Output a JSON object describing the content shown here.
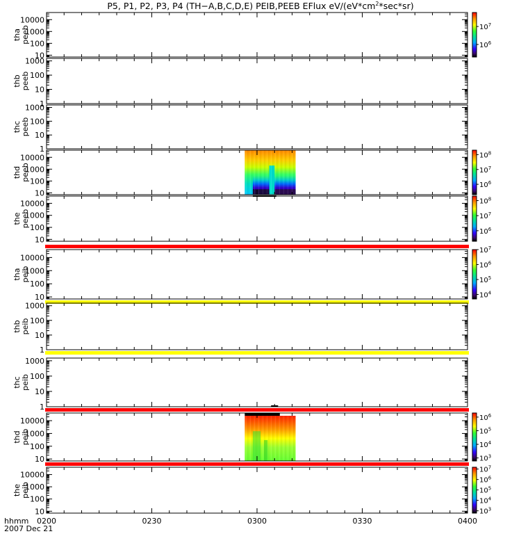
{
  "title": {
    "main": "P5, P1, P2, P3, P4 (TH−A,B,C,D,E) PEIB,PEEB EFlux eV/(eV*cm",
    "sup": "2",
    "tail": "*sec*sr)"
  },
  "time_axis": {
    "label": "hhmm",
    "date": "2007 Dec 21",
    "ticks": [
      "0200",
      "0230",
      "0300",
      "0330",
      "0400"
    ],
    "range_minutes": [
      0,
      120
    ]
  },
  "colors": {
    "red_bar": "#ff0000",
    "yellow_bar": "#ffff00",
    "black_bar": "#000000"
  },
  "chart_data": [
    {
      "type": "heatmap",
      "label_line1": "tha",
      "label_line2": "peeb",
      "yscale": "log",
      "ylim": [
        7,
        40000
      ],
      "yticks": [
        "10",
        "100",
        "1000",
        "10000"
      ],
      "data_blocks": [],
      "colorbar": {
        "scale": "log",
        "range": [
          200000,
          60000000
        ],
        "ticks": [
          {
            "base": "10",
            "exp": "6",
            "value": 1000000
          },
          {
            "base": "10",
            "exp": "7",
            "value": 10000000
          }
        ]
      }
    },
    {
      "type": "heatmap",
      "label_line1": "thb",
      "label_line2": "peeb",
      "yscale": "log",
      "ylim": [
        1,
        1500
      ],
      "yticks": [
        "1",
        "10",
        "100",
        "1000"
      ],
      "data_blocks": []
    },
    {
      "type": "heatmap",
      "label_line1": "thc",
      "label_line2": "peeb",
      "yscale": "log",
      "ylim": [
        1,
        1500
      ],
      "yticks": [
        "1",
        "10",
        "100",
        "1000"
      ],
      "data_blocks": []
    },
    {
      "type": "heatmap",
      "label_line1": "thd",
      "label_line2": "peeb",
      "yscale": "log",
      "ylim": [
        7,
        40000
      ],
      "yticks": [
        "10",
        "100",
        "1000",
        "10000"
      ],
      "data_blocks": [
        {
          "t_start": 56.5,
          "t_end": 71,
          "kind": "peeb_spectrum"
        }
      ],
      "colorbar": {
        "scale": "log",
        "range": [
          200000,
          200000000
        ],
        "ticks": [
          {
            "base": "10",
            "exp": "6",
            "value": 1000000
          },
          {
            "base": "10",
            "exp": "7",
            "value": 10000000
          },
          {
            "base": "10",
            "exp": "8",
            "value": 100000000
          }
        ]
      }
    },
    {
      "type": "heatmap",
      "label_line1": "the",
      "label_line2": "peeb",
      "yscale": "log",
      "ylim": [
        7,
        40000
      ],
      "yticks": [
        "10",
        "100",
        "1000",
        "10000"
      ],
      "data_blocks": [],
      "colorbar": {
        "scale": "log",
        "range": [
          200000,
          200000000
        ],
        "ticks": [
          {
            "base": "10",
            "exp": "6",
            "value": 1000000
          },
          {
            "base": "10",
            "exp": "7",
            "value": 10000000
          },
          {
            "base": "10",
            "exp": "8",
            "value": 100000000
          }
        ]
      }
    },
    {
      "type": "heatmap",
      "label_line1": "tha",
      "label_line2": "peib",
      "yscale": "log",
      "ylim": [
        7,
        40000
      ],
      "yticks": [
        "10",
        "100",
        "1000",
        "10000"
      ],
      "top_bar": "red_bar",
      "bottom_bar": "yellow_bar",
      "data_blocks": [],
      "colorbar": {
        "scale": "log",
        "range": [
          5000,
          10000000
        ],
        "ticks": [
          {
            "base": "10",
            "exp": "4",
            "value": 10000
          },
          {
            "base": "10",
            "exp": "5",
            "value": 100000
          },
          {
            "base": "10",
            "exp": "6",
            "value": 1000000
          },
          {
            "base": "10",
            "exp": "7",
            "value": 10000000
          }
        ]
      }
    },
    {
      "type": "heatmap",
      "label_line1": "thb",
      "label_line2": "peib",
      "yscale": "log",
      "ylim": [
        1,
        1500
      ],
      "yticks": [
        "1",
        "10",
        "100",
        "1000"
      ],
      "bottom_bar": "yellow_bar",
      "data_blocks": []
    },
    {
      "type": "heatmap",
      "label_line1": "thc",
      "label_line2": "peib",
      "yscale": "log",
      "ylim": [
        1,
        1500
      ],
      "yticks": [
        "1",
        "10",
        "100",
        "1000"
      ],
      "bottom_bar": "red_bar",
      "data_blocks": []
    },
    {
      "type": "heatmap",
      "label_line1": "thd",
      "label_line2": "peib",
      "yscale": "log",
      "ylim": [
        7,
        40000
      ],
      "yticks": [
        "10",
        "100",
        "1000",
        "10000"
      ],
      "bottom_bar": "red_bar",
      "data_blocks": [
        {
          "t_start": 56.5,
          "t_end": 71,
          "kind": "peib_spectrum"
        }
      ],
      "colorbar": {
        "scale": "log",
        "range": [
          600,
          2000000
        ],
        "ticks": [
          {
            "base": "10",
            "exp": "3",
            "value": 1000
          },
          {
            "base": "10",
            "exp": "4",
            "value": 10000
          },
          {
            "base": "10",
            "exp": "5",
            "value": 100000
          },
          {
            "base": "10",
            "exp": "6",
            "value": 1000000
          }
        ]
      }
    },
    {
      "type": "heatmap",
      "label_line1": "the",
      "label_line2": "peib",
      "yscale": "log",
      "ylim": [
        7,
        40000
      ],
      "yticks": [
        "10",
        "100",
        "1000",
        "10000"
      ],
      "data_blocks": [],
      "colorbar": {
        "scale": "log",
        "range": [
          600,
          15000000
        ],
        "ticks": [
          {
            "base": "10",
            "exp": "3",
            "value": 1000
          },
          {
            "base": "10",
            "exp": "4",
            "value": 10000
          },
          {
            "base": "10",
            "exp": "5",
            "value": 100000
          },
          {
            "base": "10",
            "exp": "6",
            "value": 1000000
          },
          {
            "base": "10",
            "exp": "7",
            "value": 10000000
          }
        ]
      }
    }
  ]
}
